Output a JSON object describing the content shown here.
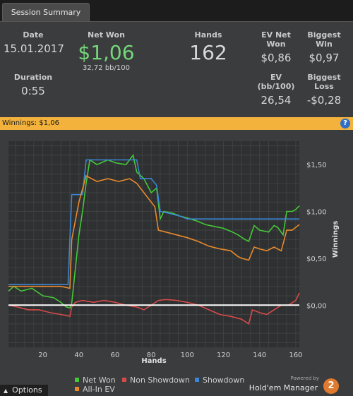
{
  "tab": {
    "label": "Session Summary"
  },
  "summary": {
    "date_label": "Date",
    "date_value": "15.01.2017",
    "duration_label": "Duration",
    "duration_value": "0:55",
    "netwon_label": "Net Won",
    "netwon_value": "$1,06",
    "netwon_sub": "32,72 bb/100",
    "hands_label": "Hands",
    "hands_value": "162",
    "evnet_label": "EV Net Won",
    "evnet_value": "$0,86",
    "evbb_label": "EV (bb/100)",
    "evbb_value": "26,54",
    "bigwin_label": "Biggest Win",
    "bigwin_value": "$0,97",
    "bigloss_label": "Biggest Loss",
    "bigloss_value": "-$0,28"
  },
  "banner": {
    "text": "Winnings: $1,06",
    "help": "?"
  },
  "chart_data": {
    "type": "line",
    "title": "",
    "xlabel": "Hands",
    "ylabel": "Winnings",
    "xlim": [
      1,
      162
    ],
    "ylim": [
      -0.45,
      1.75
    ],
    "x_ticks": [
      20,
      40,
      60,
      80,
      100,
      120,
      140,
      160
    ],
    "x_tick_labels": [
      "20",
      "40",
      "60",
      "80",
      "100",
      "120",
      "140",
      "160"
    ],
    "y_ticks": [
      0,
      0.5,
      1.0,
      1.5
    ],
    "y_tick_labels": [
      "$0,00",
      "$0,50",
      "$1,00",
      "$1,50"
    ],
    "grid": true,
    "series": [
      {
        "name": "Net Won",
        "color": "#44c838",
        "points": [
          [
            1,
            0.15
          ],
          [
            4,
            0.2
          ],
          [
            8,
            0.15
          ],
          [
            14,
            0.18
          ],
          [
            20,
            0.1
          ],
          [
            26,
            0.08
          ],
          [
            30,
            0.03
          ],
          [
            33,
            -0.02
          ],
          [
            35,
            -0.03
          ],
          [
            36,
            0.02
          ],
          [
            40,
            0.75
          ],
          [
            42,
            1.0
          ],
          [
            44,
            1.3
          ],
          [
            46,
            1.55
          ],
          [
            50,
            1.5
          ],
          [
            56,
            1.55
          ],
          [
            60,
            1.52
          ],
          [
            66,
            1.5
          ],
          [
            70,
            1.6
          ],
          [
            72,
            1.42
          ],
          [
            76,
            1.35
          ],
          [
            80,
            1.2
          ],
          [
            83,
            1.25
          ],
          [
            85,
            0.92
          ],
          [
            87,
            1.0
          ],
          [
            92,
            0.98
          ],
          [
            96,
            0.95
          ],
          [
            100,
            0.93
          ],
          [
            105,
            0.9
          ],
          [
            110,
            0.86
          ],
          [
            115,
            0.84
          ],
          [
            120,
            0.82
          ],
          [
            125,
            0.78
          ],
          [
            128,
            0.75
          ],
          [
            132,
            0.7
          ],
          [
            134,
            0.68
          ],
          [
            137,
            0.85
          ],
          [
            140,
            0.8
          ],
          [
            145,
            0.78
          ],
          [
            148,
            0.85
          ],
          [
            150,
            0.83
          ],
          [
            153,
            0.75
          ],
          [
            155,
            1.0
          ],
          [
            158,
            1.0
          ],
          [
            160,
            1.02
          ],
          [
            162,
            1.06
          ]
        ]
      },
      {
        "name": "Non Showdown",
        "color": "#d74a4a",
        "points": [
          [
            1,
            0.0
          ],
          [
            6,
            -0.02
          ],
          [
            12,
            -0.05
          ],
          [
            18,
            -0.05
          ],
          [
            24,
            -0.08
          ],
          [
            30,
            -0.1
          ],
          [
            35,
            -0.12
          ],
          [
            36,
            -0.02
          ],
          [
            38,
            0.03
          ],
          [
            42,
            0.05
          ],
          [
            48,
            0.03
          ],
          [
            54,
            0.05
          ],
          [
            60,
            0.03
          ],
          [
            66,
            0.0
          ],
          [
            72,
            -0.02
          ],
          [
            76,
            -0.05
          ],
          [
            80,
            0.0
          ],
          [
            84,
            0.05
          ],
          [
            88,
            0.06
          ],
          [
            94,
            0.05
          ],
          [
            100,
            0.03
          ],
          [
            106,
            0.0
          ],
          [
            112,
            -0.05
          ],
          [
            118,
            -0.1
          ],
          [
            124,
            -0.12
          ],
          [
            130,
            -0.15
          ],
          [
            134,
            -0.2
          ],
          [
            136,
            -0.05
          ],
          [
            140,
            -0.08
          ],
          [
            144,
            -0.1
          ],
          [
            148,
            -0.05
          ],
          [
            152,
            0.0
          ],
          [
            156,
            0.0
          ],
          [
            160,
            0.05
          ],
          [
            162,
            0.13
          ]
        ]
      },
      {
        "name": "Showdown",
        "color": "#3a86d6",
        "points": [
          [
            1,
            0.22
          ],
          [
            34,
            0.22
          ],
          [
            36,
            1.18
          ],
          [
            42,
            1.18
          ],
          [
            44,
            1.55
          ],
          [
            72,
            1.55
          ],
          [
            74,
            1.35
          ],
          [
            80,
            1.35
          ],
          [
            83,
            1.28
          ],
          [
            85,
            1.0
          ],
          [
            90,
            0.98
          ],
          [
            96,
            0.95
          ],
          [
            100,
            0.92
          ],
          [
            162,
            0.92
          ]
        ]
      },
      {
        "name": "All-In EV",
        "color": "#e88a2c",
        "points": [
          [
            1,
            0.2
          ],
          [
            30,
            0.2
          ],
          [
            35,
            0.18
          ],
          [
            36,
            0.7
          ],
          [
            40,
            1.1
          ],
          [
            44,
            1.38
          ],
          [
            50,
            1.32
          ],
          [
            56,
            1.35
          ],
          [
            62,
            1.32
          ],
          [
            68,
            1.35
          ],
          [
            72,
            1.3
          ],
          [
            76,
            1.2
          ],
          [
            82,
            1.05
          ],
          [
            84,
            0.8
          ],
          [
            88,
            0.78
          ],
          [
            94,
            0.75
          ],
          [
            100,
            0.72
          ],
          [
            106,
            0.68
          ],
          [
            112,
            0.63
          ],
          [
            118,
            0.6
          ],
          [
            124,
            0.58
          ],
          [
            128,
            0.52
          ],
          [
            130,
            0.5
          ],
          [
            134,
            0.48
          ],
          [
            137,
            0.62
          ],
          [
            140,
            0.6
          ],
          [
            144,
            0.58
          ],
          [
            148,
            0.62
          ],
          [
            152,
            0.58
          ],
          [
            155,
            0.8
          ],
          [
            158,
            0.8
          ],
          [
            162,
            0.86
          ]
        ]
      }
    ],
    "zero_line_color": "#ffffff"
  },
  "legend": {
    "net_won": "Net Won",
    "non_showdown": "Non Showdown",
    "showdown": "Showdown",
    "all_in_ev": "All-In EV"
  },
  "footer": {
    "options_label": "Options",
    "powered_by": "Powered by",
    "brand_name": "Hold'em Manager",
    "brand_logo_text": "2"
  }
}
